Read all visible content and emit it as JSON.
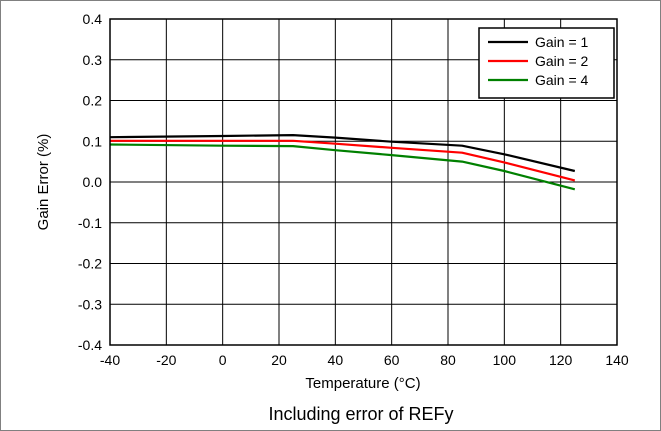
{
  "chart_data": {
    "type": "line",
    "title": "",
    "caption": "Including error of REFy",
    "xlabel": "Temperature (°C)",
    "ylabel": "Gain Error (%)",
    "xlim": [
      -40,
      140
    ],
    "ylim": [
      -0.4,
      0.4
    ],
    "x_ticks": [
      "-40",
      "-20",
      "0",
      "20",
      "40",
      "60",
      "80",
      "100",
      "120",
      "140"
    ],
    "y_ticks": [
      "0.4",
      "0.3",
      "0.2",
      "0.1",
      "0.0",
      "-0.1",
      "-0.2",
      "-0.3",
      "-0.4"
    ],
    "grid": true,
    "legend_position": "top-right",
    "series": [
      {
        "name": "Gain = 1",
        "color": "#000000",
        "points": [
          [
            -40,
            0.11
          ],
          [
            0,
            0.113
          ],
          [
            25,
            0.115
          ],
          [
            40,
            0.109
          ],
          [
            60,
            0.099
          ],
          [
            85,
            0.089
          ],
          [
            100,
            0.068
          ],
          [
            125,
            0.027
          ]
        ]
      },
      {
        "name": "Gain = 2",
        "color": "#ff0000",
        "points": [
          [
            -40,
            0.101
          ],
          [
            0,
            0.101
          ],
          [
            25,
            0.101
          ],
          [
            40,
            0.094
          ],
          [
            60,
            0.084
          ],
          [
            85,
            0.072
          ],
          [
            100,
            0.048
          ],
          [
            125,
            0.004
          ]
        ]
      },
      {
        "name": "Gain = 4",
        "color": "#008000",
        "points": [
          [
            -40,
            0.092
          ],
          [
            0,
            0.089
          ],
          [
            25,
            0.088
          ],
          [
            40,
            0.078
          ],
          [
            60,
            0.066
          ],
          [
            85,
            0.05
          ],
          [
            100,
            0.027
          ],
          [
            125,
            -0.018
          ]
        ]
      }
    ]
  }
}
